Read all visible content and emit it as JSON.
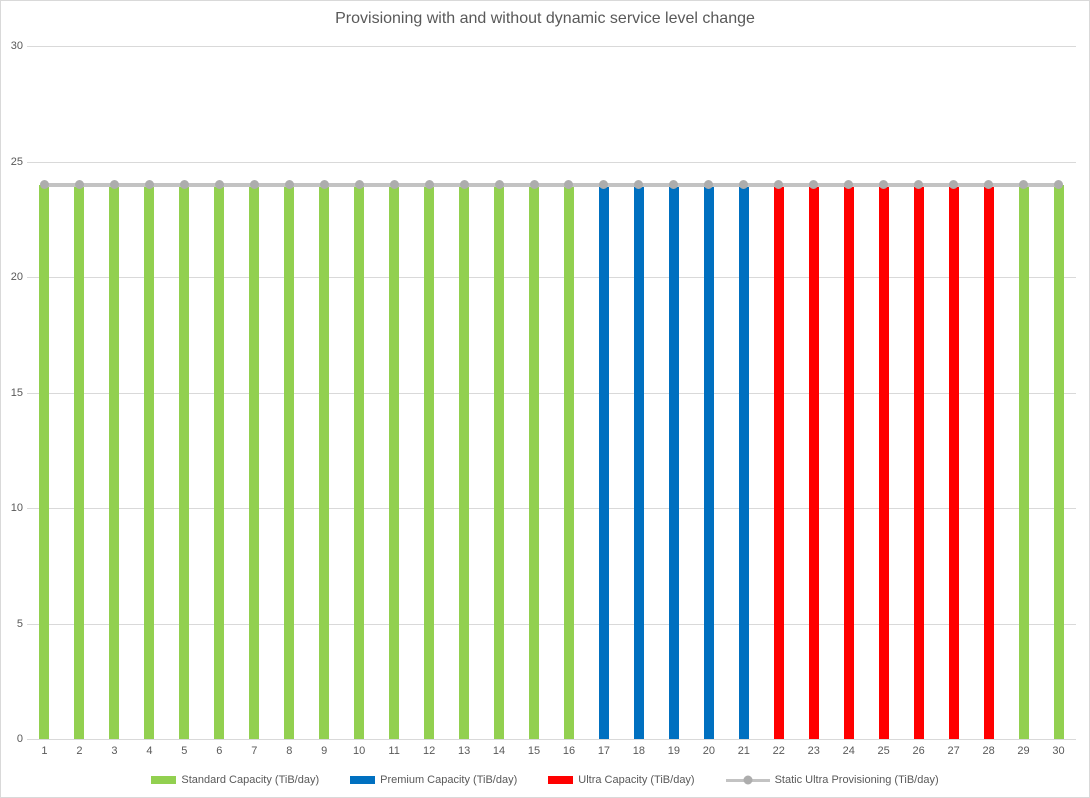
{
  "colors": {
    "standard": "#92D050",
    "premium": "#0070C0",
    "ultra": "#FF0000",
    "static_line": "#C3C3C3",
    "static_marker": "#ADADAD",
    "gridline": "#D9D9D9",
    "axis_text": "#595959"
  },
  "chart_data": {
    "type": "bar",
    "title": "Provisioning with and without dynamic service level change",
    "xlabel": "",
    "ylabel": "",
    "ylim": [
      0,
      30
    ],
    "yticks": [
      0,
      5,
      10,
      15,
      20,
      25,
      30
    ],
    "grid": true,
    "legend_position": "bottom",
    "categories": [
      "1",
      "2",
      "3",
      "4",
      "5",
      "6",
      "7",
      "8",
      "9",
      "10",
      "11",
      "12",
      "13",
      "14",
      "15",
      "16",
      "17",
      "18",
      "19",
      "20",
      "21",
      "22",
      "23",
      "24",
      "25",
      "26",
      "27",
      "28",
      "29",
      "30"
    ],
    "series": [
      {
        "name": "Standard Capacity (TiB/day)",
        "type": "bar",
        "color_key": "standard",
        "values": [
          24,
          24,
          24,
          24,
          24,
          24,
          24,
          24,
          24,
          24,
          24,
          24,
          24,
          24,
          24,
          24,
          null,
          null,
          null,
          null,
          null,
          null,
          null,
          null,
          null,
          null,
          null,
          null,
          24,
          24
        ]
      },
      {
        "name": "Premium Capacity (TiB/day)",
        "type": "bar",
        "color_key": "premium",
        "values": [
          null,
          null,
          null,
          null,
          null,
          null,
          null,
          null,
          null,
          null,
          null,
          null,
          null,
          null,
          null,
          null,
          24,
          24,
          24,
          24,
          24,
          null,
          null,
          null,
          null,
          null,
          null,
          null,
          null,
          null
        ]
      },
      {
        "name": "Ultra Capacity (TiB/day)",
        "type": "bar",
        "color_key": "ultra",
        "values": [
          null,
          null,
          null,
          null,
          null,
          null,
          null,
          null,
          null,
          null,
          null,
          null,
          null,
          null,
          null,
          null,
          null,
          null,
          null,
          null,
          null,
          24,
          24,
          24,
          24,
          24,
          24,
          24,
          null,
          null
        ]
      },
      {
        "name": "Static Ultra Provisioning (TiB/day)",
        "type": "line",
        "color_key": "static_line",
        "marker_color_key": "static_marker",
        "values": [
          24,
          24,
          24,
          24,
          24,
          24,
          24,
          24,
          24,
          24,
          24,
          24,
          24,
          24,
          24,
          24,
          24,
          24,
          24,
          24,
          24,
          24,
          24,
          24,
          24,
          24,
          24,
          24,
          24,
          24
        ]
      }
    ]
  }
}
